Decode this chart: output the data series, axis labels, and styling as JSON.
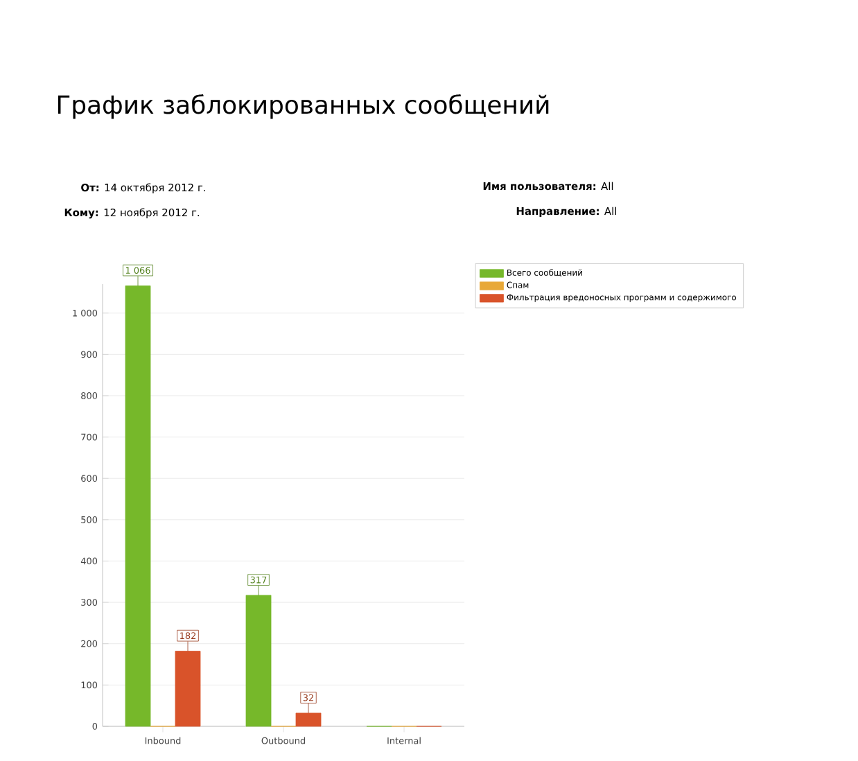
{
  "chart_data": {
    "type": "bar",
    "title": "График заблокированных сообщений",
    "annotations": [
      "**От:** 14 октября 2012 г.",
      "**Кому:** 12 ноября 2012 г.",
      "**Имя пользователя:** All",
      "**Направление:** All"
    ],
    "categories": [
      "Inbound",
      "Outbound",
      "Internal"
    ],
    "series": [
      {
        "name": "Всего сообщений",
        "color": "#76b82a",
        "values": [
          1066,
          317,
          0
        ],
        "value_labels": [
          "1 066",
          "317",
          null
        ]
      },
      {
        "name": "Спам",
        "color": "#e8a838",
        "values": [
          0,
          0,
          0
        ]
      },
      {
        "name": "Фильтрация вредоносных программ и содержимого",
        "color": "#d9532a",
        "values": [
          182,
          32,
          0
        ],
        "value_labels": [
          "182",
          "32",
          null
        ]
      }
    ],
    "ylim": [
      0,
      1070
    ],
    "yticks": [
      0,
      100,
      200,
      300,
      400,
      500,
      600,
      700,
      800,
      900,
      {
        "value": 1000,
        "label": "1 000"
      }
    ],
    "grid": "y",
    "legend": "right"
  }
}
